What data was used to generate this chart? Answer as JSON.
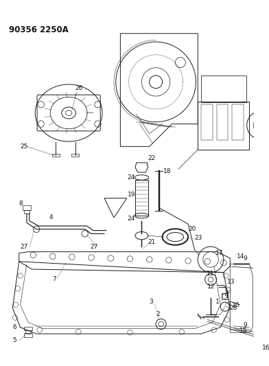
{
  "title_code": "90356 2250A",
  "background_color": "#ffffff",
  "fig_width": 3.92,
  "fig_height": 5.33,
  "dpi": 100,
  "title_fontsize": 8.5,
  "title_fontweight": "bold",
  "line_color": "#1a1a1a",
  "text_color": "#111111",
  "part_fontsize": 6.5,
  "gray": "#888888",
  "light_gray": "#bbbbbb"
}
